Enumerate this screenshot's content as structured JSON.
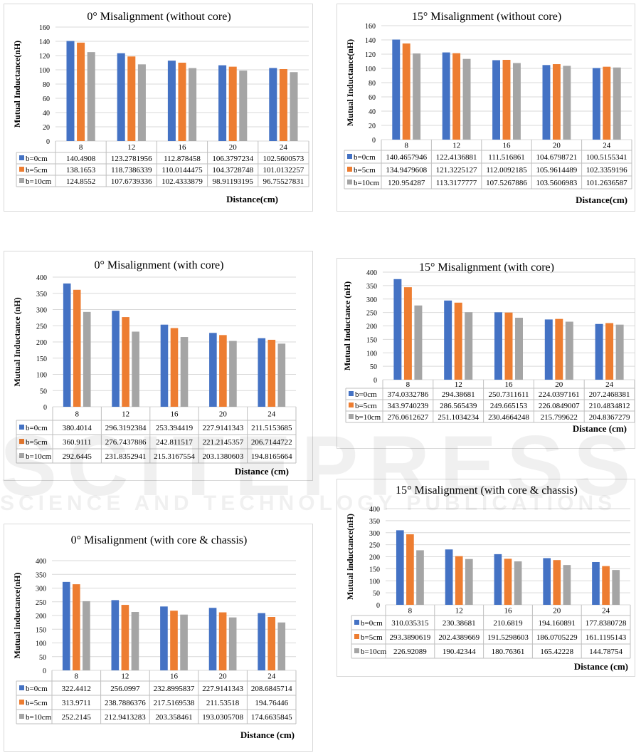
{
  "watermark": {
    "brand": "SCITEPRESS",
    "tagline": "SCIENCE AND TECHNOLOGY PUBLICATIONS"
  },
  "colors": {
    "b0": "#4472c4",
    "b5": "#ed7d31",
    "b10": "#a5a5a5"
  },
  "chart_data": [
    {
      "type": "bar",
      "title": "0° Misalignment (without core)",
      "ylabel": "Mutual Inductance(nH)",
      "xlabel": "Distance(cm)",
      "ylim": [
        0,
        160
      ],
      "ystep": 20,
      "grid": true,
      "legend": "data-table",
      "categories": [
        "8",
        "12",
        "16",
        "20",
        "24"
      ],
      "series": [
        {
          "name": "b=0cm",
          "labels": [
            "140.4908",
            "123.2781956",
            "112.878458",
            "106.3797234",
            "102.5600573"
          ],
          "values": [
            140.4908,
            123.2781956,
            112.878458,
            106.3797234,
            102.5600573
          ]
        },
        {
          "name": "b=5cm",
          "labels": [
            "138.1653",
            "118.7386339",
            "110.0144475",
            "104.3728748",
            "101.0132257"
          ],
          "values": [
            138.1653,
            118.7386339,
            110.0144475,
            104.3728748,
            101.0132257
          ]
        },
        {
          "name": "b=10cm",
          "labels": [
            "124.8552",
            "107.6739336",
            "102.4333879",
            "98.91193195",
            "96.75527831"
          ],
          "values": [
            124.8552,
            107.6739336,
            102.4333879,
            98.91193195,
            96.75527831
          ]
        }
      ]
    },
    {
      "type": "bar",
      "title": "15° Misalignment (without core)",
      "ylabel": "Mutual Inductance(nH)",
      "xlabel": "Distance(cm)",
      "ylim": [
        0,
        160
      ],
      "ystep": 20,
      "grid": true,
      "legend": "data-table",
      "categories": [
        "8",
        "12",
        "16",
        "20",
        "24"
      ],
      "series": [
        {
          "name": "b=0cm",
          "labels": [
            "140.4657946",
            "122.4136881",
            "111.516861",
            "104.6798721",
            "100.5155341"
          ],
          "values": [
            140.4657946,
            122.4136881,
            111.516861,
            104.6798721,
            100.5155341
          ]
        },
        {
          "name": "b=5cm",
          "labels": [
            "134.9479608",
            "121.3225127",
            "112.0092185",
            "105.9614489",
            "102.3359196"
          ],
          "values": [
            134.9479608,
            121.3225127,
            112.0092185,
            105.9614489,
            102.3359196
          ]
        },
        {
          "name": "b=10cm",
          "labels": [
            "120.954287",
            "113.3177777",
            "107.5267886",
            "103.5606983",
            "101.2636587"
          ],
          "values": [
            120.954287,
            113.3177777,
            107.5267886,
            103.5606983,
            101.2636587
          ]
        }
      ]
    },
    {
      "type": "bar",
      "title": "0° Misalignment (with core)",
      "ylabel": "Mutual Inductance (nH)",
      "xlabel": "Distance (cm)",
      "ylim": [
        0,
        400
      ],
      "ystep": 50,
      "grid": true,
      "legend": "data-table",
      "categories": [
        "8",
        "12",
        "16",
        "20",
        "24"
      ],
      "series": [
        {
          "name": "b=0cm",
          "labels": [
            "380.4014",
            "296.3192384",
            "253.394419",
            "227.9141343",
            "211.5153685"
          ],
          "values": [
            380.4014,
            296.3192384,
            253.394419,
            227.9141343,
            211.5153685
          ]
        },
        {
          "name": "b=5cm",
          "labels": [
            "360.9111",
            "276.7437886",
            "242.811517",
            "221.2145357",
            "206.7144722"
          ],
          "values": [
            360.9111,
            276.7437886,
            242.811517,
            221.2145357,
            206.7144722
          ]
        },
        {
          "name": "b=10cm",
          "labels": [
            "292.6445",
            "231.8352941",
            "215.3167554",
            "203.1380603",
            "194.8165664"
          ],
          "values": [
            292.6445,
            231.8352941,
            215.3167554,
            203.1380603,
            194.8165664
          ]
        }
      ]
    },
    {
      "type": "bar",
      "title": "15° Misalignment (with core)",
      "ylabel": "Mutual Inductance (nH)",
      "xlabel": "Distance (cm)",
      "ylim": [
        0,
        400
      ],
      "ystep": 50,
      "grid": true,
      "legend": "data-table",
      "categories": [
        "8",
        "12",
        "16",
        "20",
        "24"
      ],
      "series": [
        {
          "name": "b=0cm",
          "labels": [
            "374.0332786",
            "294.38681",
            "250.7311611",
            "224.0397161",
            "207.2468381"
          ],
          "values": [
            374.0332786,
            294.38681,
            250.7311611,
            224.0397161,
            207.2468381
          ]
        },
        {
          "name": "b=5cm",
          "labels": [
            "343.9740239",
            "286.565439",
            "249.665153",
            "226.0849007",
            "210.4834812"
          ],
          "values": [
            343.9740239,
            286.565439,
            249.665153,
            226.0849007,
            210.4834812
          ]
        },
        {
          "name": "b=10cm",
          "labels": [
            "276.0612627",
            "251.1034234",
            "230.4664248",
            "215.799622",
            "204.8367279"
          ],
          "values": [
            276.0612627,
            251.1034234,
            230.4664248,
            215.799622,
            204.8367279
          ]
        }
      ]
    },
    {
      "type": "bar",
      "title": "0° Misalignment (with core & chassis)",
      "ylabel": "Mutual inductance(nH)",
      "xlabel": "Distance (cm)",
      "ylim": [
        0,
        400
      ],
      "ystep": 50,
      "grid": true,
      "legend": "data-table",
      "categories": [
        "8",
        "12",
        "16",
        "20",
        "24"
      ],
      "series": [
        {
          "name": "b=0cm",
          "labels": [
            "322.4412",
            "256.0997",
            "232.8995837",
            "227.9141343",
            "208.6845714"
          ],
          "values": [
            322.4412,
            256.0997,
            232.8995837,
            227.9141343,
            208.6845714
          ]
        },
        {
          "name": "b=5cm",
          "labels": [
            "313.9711",
            "238.7886376",
            "217.5169538",
            "211.53518",
            "194.76446"
          ],
          "values": [
            313.9711,
            238.7886376,
            217.5169538,
            211.53518,
            194.76446
          ]
        },
        {
          "name": "b=10cm",
          "labels": [
            "252.2145",
            "212.9413283",
            "203.358461",
            "193.0305708",
            "174.6635845"
          ],
          "values": [
            252.2145,
            212.9413283,
            203.358461,
            193.0305708,
            174.6635845
          ]
        }
      ]
    },
    {
      "type": "bar",
      "title": "15° Misalignment (with core & chassis)",
      "ylabel": "Mutual inductance(nH)",
      "xlabel": "Distance (cm)",
      "ylim": [
        0,
        400
      ],
      "ystep": 50,
      "grid": true,
      "legend": "data-table",
      "categories": [
        "8",
        "12",
        "16",
        "20",
        "24"
      ],
      "series": [
        {
          "name": "b=0cm",
          "labels": [
            "310.035315",
            "230.38681",
            "210.6819",
            "194.160891",
            "177.8380728"
          ],
          "values": [
            310.035315,
            230.38681,
            210.6819,
            194.160891,
            177.8380728
          ]
        },
        {
          "name": "b=5cm",
          "labels": [
            "293.3890619",
            "202.4389669",
            "191.5298603",
            "186.0705229",
            "161.1195143"
          ],
          "values": [
            293.3890619,
            202.4389669,
            191.5298603,
            186.0705229,
            161.1195143
          ]
        },
        {
          "name": "b=10cm",
          "labels": [
            "226.92089",
            "190.42344",
            "180.76361",
            "165.42228",
            "144.78754"
          ],
          "values": [
            226.92089,
            190.42344,
            180.76361,
            165.42228,
            144.78754
          ]
        }
      ]
    }
  ]
}
